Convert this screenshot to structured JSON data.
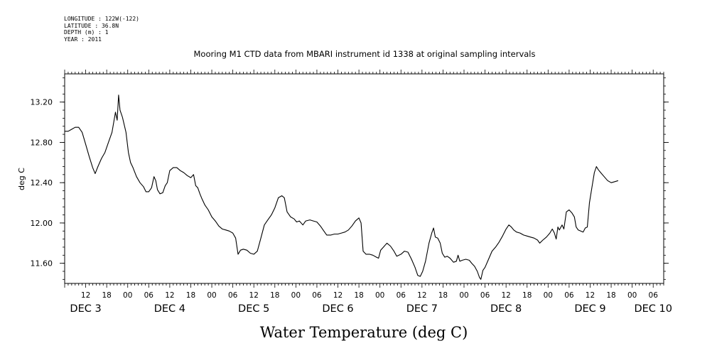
{
  "meta": {
    "longitude": "LONGITUDE : 122W(-122)",
    "latitude": "LATITUDE : 36.8N",
    "depth": "DEPTH (m) : 1",
    "year": "YEAR : 2011"
  },
  "chart_data": {
    "type": "line",
    "title": "Mooring M1 CTD data from MBARI instrument id 1338 at original sampling intervals",
    "xlabel": "Water Temperature (deg C)",
    "ylabel": "deg C",
    "x_unit": "hours since DEC 3 06:00",
    "xlim": [
      0,
      171
    ],
    "ylim": [
      11.4,
      13.48
    ],
    "yticks": [
      11.6,
      12.0,
      12.4,
      12.8,
      13.2
    ],
    "hour_ticks": [
      {
        "x": 6,
        "label": "12"
      },
      {
        "x": 12,
        "label": "18"
      },
      {
        "x": 18,
        "label": "00"
      },
      {
        "x": 24,
        "label": "06"
      },
      {
        "x": 30,
        "label": "12"
      },
      {
        "x": 36,
        "label": "18"
      },
      {
        "x": 42,
        "label": "00"
      },
      {
        "x": 48,
        "label": "06"
      },
      {
        "x": 54,
        "label": "12"
      },
      {
        "x": 60,
        "label": "18"
      },
      {
        "x": 66,
        "label": "00"
      },
      {
        "x": 72,
        "label": "06"
      },
      {
        "x": 78,
        "label": "12"
      },
      {
        "x": 84,
        "label": "18"
      },
      {
        "x": 90,
        "label": "00"
      },
      {
        "x": 96,
        "label": "06"
      },
      {
        "x": 102,
        "label": "12"
      },
      {
        "x": 108,
        "label": "18"
      },
      {
        "x": 114,
        "label": "00"
      },
      {
        "x": 120,
        "label": "06"
      },
      {
        "x": 126,
        "label": "12"
      },
      {
        "x": 132,
        "label": "18"
      },
      {
        "x": 138,
        "label": "00"
      },
      {
        "x": 144,
        "label": "06"
      },
      {
        "x": 150,
        "label": "12"
      },
      {
        "x": 156,
        "label": "18"
      },
      {
        "x": 162,
        "label": "00"
      },
      {
        "x": 168,
        "label": "06"
      }
    ],
    "day_labels": [
      {
        "x": 6,
        "label": "DEC  3"
      },
      {
        "x": 30,
        "label": "DEC  4"
      },
      {
        "x": 54,
        "label": "DEC  5"
      },
      {
        "x": 78,
        "label": "DEC  6"
      },
      {
        "x": 102,
        "label": "DEC  7"
      },
      {
        "x": 126,
        "label": "DEC  8"
      },
      {
        "x": 150,
        "label": "DEC  9"
      },
      {
        "x": 168,
        "label": "DEC 10"
      }
    ],
    "series": [
      {
        "color": "#000000",
        "points": [
          [
            0,
            12.91
          ],
          [
            1,
            12.91
          ],
          [
            2,
            12.93
          ],
          [
            3,
            12.95
          ],
          [
            4,
            12.95
          ],
          [
            5,
            12.9
          ],
          [
            6,
            12.78
          ],
          [
            7,
            12.66
          ],
          [
            8,
            12.55
          ],
          [
            8.7,
            12.49
          ],
          [
            9.5,
            12.56
          ],
          [
            10.5,
            12.64
          ],
          [
            11.5,
            12.7
          ],
          [
            12.5,
            12.8
          ],
          [
            13.5,
            12.9
          ],
          [
            14.5,
            13.1
          ],
          [
            15,
            13.02
          ],
          [
            15.4,
            13.27
          ],
          [
            15.8,
            13.12
          ],
          [
            16.5,
            13.05
          ],
          [
            17.5,
            12.9
          ],
          [
            18.2,
            12.7
          ],
          [
            18.8,
            12.6
          ],
          [
            19.5,
            12.55
          ],
          [
            20.5,
            12.46
          ],
          [
            21.5,
            12.4
          ],
          [
            22.5,
            12.36
          ],
          [
            23.2,
            12.31
          ],
          [
            24,
            12.31
          ],
          [
            24.8,
            12.35
          ],
          [
            25.5,
            12.46
          ],
          [
            26,
            12.42
          ],
          [
            26.5,
            12.33
          ],
          [
            27.2,
            12.29
          ],
          [
            28,
            12.3
          ],
          [
            28.7,
            12.37
          ],
          [
            29.3,
            12.4
          ],
          [
            30,
            12.52
          ],
          [
            31,
            12.55
          ],
          [
            32,
            12.55
          ],
          [
            33,
            12.52
          ],
          [
            34,
            12.5
          ],
          [
            35,
            12.47
          ],
          [
            36,
            12.45
          ],
          [
            36.8,
            12.48
          ],
          [
            37.4,
            12.37
          ],
          [
            38,
            12.35
          ],
          [
            38.6,
            12.29
          ],
          [
            39.2,
            12.24
          ],
          [
            40,
            12.18
          ],
          [
            41,
            12.13
          ],
          [
            42,
            12.06
          ],
          [
            43,
            12.02
          ],
          [
            44,
            11.97
          ],
          [
            45,
            11.94
          ],
          [
            46,
            11.93
          ],
          [
            47,
            11.92
          ],
          [
            48,
            11.9
          ],
          [
            48.8,
            11.85
          ],
          [
            49.5,
            11.69
          ],
          [
            50.2,
            11.73
          ],
          [
            51,
            11.74
          ],
          [
            52,
            11.73
          ],
          [
            53,
            11.7
          ],
          [
            54,
            11.69
          ],
          [
            55,
            11.72
          ],
          [
            56,
            11.85
          ],
          [
            57,
            11.98
          ],
          [
            58,
            12.03
          ],
          [
            59,
            12.08
          ],
          [
            60,
            12.15
          ],
          [
            61,
            12.25
          ],
          [
            62,
            12.27
          ],
          [
            62.7,
            12.25
          ],
          [
            63.5,
            12.11
          ],
          [
            64.5,
            12.06
          ],
          [
            65.5,
            12.04
          ],
          [
            66.2,
            12.01
          ],
          [
            67,
            12.02
          ],
          [
            68,
            11.98
          ],
          [
            68.8,
            12.02
          ],
          [
            70,
            12.03
          ],
          [
            71,
            12.02
          ],
          [
            72,
            12.01
          ],
          [
            73,
            11.97
          ],
          [
            74,
            11.92
          ],
          [
            74.8,
            11.88
          ],
          [
            76,
            11.88
          ],
          [
            77,
            11.89
          ],
          [
            78,
            11.89
          ],
          [
            79,
            11.9
          ],
          [
            80,
            11.91
          ],
          [
            81,
            11.93
          ],
          [
            82,
            11.97
          ],
          [
            83,
            12.02
          ],
          [
            84,
            12.05
          ],
          [
            84.6,
            12.0
          ],
          [
            85.2,
            11.72
          ],
          [
            86,
            11.69
          ],
          [
            87,
            11.69
          ],
          [
            88,
            11.68
          ],
          [
            89,
            11.66
          ],
          [
            89.6,
            11.65
          ],
          [
            90.2,
            11.73
          ],
          [
            91,
            11.76
          ],
          [
            92,
            11.8
          ],
          [
            93,
            11.77
          ],
          [
            94,
            11.72
          ],
          [
            94.8,
            11.67
          ],
          [
            96,
            11.69
          ],
          [
            97,
            11.72
          ],
          [
            98,
            11.71
          ],
          [
            99,
            11.64
          ],
          [
            100,
            11.56
          ],
          [
            100.8,
            11.48
          ],
          [
            101.5,
            11.47
          ],
          [
            102.2,
            11.52
          ],
          [
            103,
            11.62
          ],
          [
            104,
            11.8
          ],
          [
            104.8,
            11.9
          ],
          [
            105.3,
            11.95
          ],
          [
            105.8,
            11.86
          ],
          [
            106.5,
            11.85
          ],
          [
            107.2,
            11.8
          ],
          [
            107.8,
            11.7
          ],
          [
            108.5,
            11.66
          ],
          [
            109.2,
            11.67
          ],
          [
            110,
            11.65
          ],
          [
            111,
            11.61
          ],
          [
            111.8,
            11.62
          ],
          [
            112.3,
            11.68
          ],
          [
            112.8,
            11.62
          ],
          [
            113.5,
            11.63
          ],
          [
            114.5,
            11.64
          ],
          [
            115.5,
            11.63
          ],
          [
            116.2,
            11.6
          ],
          [
            117,
            11.57
          ],
          [
            117.8,
            11.52
          ],
          [
            118.4,
            11.46
          ],
          [
            118.8,
            11.44
          ],
          [
            119.4,
            11.53
          ],
          [
            120,
            11.56
          ],
          [
            121,
            11.64
          ],
          [
            122,
            11.72
          ],
          [
            123,
            11.76
          ],
          [
            124,
            11.81
          ],
          [
            125,
            11.87
          ],
          [
            126,
            11.94
          ],
          [
            126.8,
            11.98
          ],
          [
            127.5,
            11.96
          ],
          [
            128.2,
            11.93
          ],
          [
            129,
            11.91
          ],
          [
            130,
            11.9
          ],
          [
            131,
            11.88
          ],
          [
            132,
            11.87
          ],
          [
            133,
            11.86
          ],
          [
            134,
            11.85
          ],
          [
            135,
            11.83
          ],
          [
            135.6,
            11.8
          ],
          [
            136.5,
            11.83
          ],
          [
            137.5,
            11.86
          ],
          [
            138.5,
            11.9
          ],
          [
            139.2,
            11.94
          ],
          [
            139.8,
            11.9
          ],
          [
            140.3,
            11.84
          ],
          [
            140.8,
            11.96
          ],
          [
            141.2,
            11.93
          ],
          [
            142,
            11.98
          ],
          [
            142.5,
            11.94
          ],
          [
            143.2,
            12.11
          ],
          [
            144,
            12.13
          ],
          [
            144.8,
            12.1
          ],
          [
            145.5,
            12.06
          ],
          [
            146,
            11.96
          ],
          [
            146.6,
            11.93
          ],
          [
            147.3,
            11.92
          ],
          [
            148,
            11.91
          ],
          [
            148.6,
            11.95
          ],
          [
            149.2,
            11.96
          ],
          [
            149.8,
            12.2
          ],
          [
            150.5,
            12.35
          ],
          [
            151.2,
            12.5
          ],
          [
            151.8,
            12.56
          ],
          [
            152.3,
            12.53
          ],
          [
            153,
            12.5
          ],
          [
            154,
            12.46
          ],
          [
            155,
            12.42
          ],
          [
            156,
            12.4
          ],
          [
            157,
            12.41
          ],
          [
            158,
            12.42
          ]
        ]
      }
    ]
  }
}
